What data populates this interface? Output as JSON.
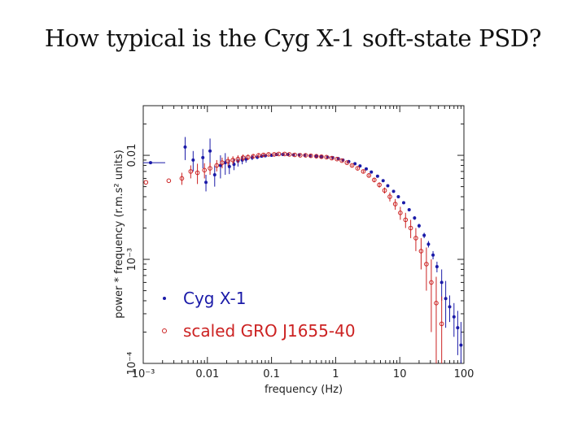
{
  "slide": {
    "title": "How typical is the Cyg X-1 soft-state PSD?"
  },
  "chart_data": {
    "type": "scatter",
    "title": "",
    "xlabel": "frequency (Hz)",
    "ylabel": "power * frequency (r.m.s² units)",
    "x_scale": "log",
    "y_scale": "log",
    "xlim": [
      0.001,
      100
    ],
    "ylim": [
      0.0001,
      0.03
    ],
    "x_ticks": [
      {
        "value": 0.001,
        "label": "10⁻³"
      },
      {
        "value": 0.01,
        "label": "0.01"
      },
      {
        "value": 0.1,
        "label": "0.1"
      },
      {
        "value": 1,
        "label": "1"
      },
      {
        "value": 10,
        "label": "10"
      },
      {
        "value": 100,
        "label": "100"
      }
    ],
    "y_ticks": [
      {
        "value": 0.0001,
        "label": "10⁻⁴"
      },
      {
        "value": 0.001,
        "label": "10⁻³"
      },
      {
        "value": 0.01,
        "label": "0.01"
      }
    ],
    "legend_position": "bottom-left",
    "series": [
      {
        "name": "Cyg X-1",
        "color": "#1a1aa8",
        "marker": "dot",
        "x": [
          0.0013,
          0.0045,
          0.006,
          0.0085,
          0.0095,
          0.011,
          0.013,
          0.016,
          0.019,
          0.022,
          0.026,
          0.03,
          0.035,
          0.04,
          0.05,
          0.06,
          0.07,
          0.08,
          0.1,
          0.12,
          0.15,
          0.18,
          0.22,
          0.27,
          0.33,
          0.4,
          0.5,
          0.6,
          0.75,
          0.9,
          1.1,
          1.3,
          1.6,
          2.0,
          2.4,
          3.0,
          3.6,
          4.5,
          5.5,
          6.5,
          8.0,
          9.5,
          11.5,
          14,
          17,
          20,
          24,
          28,
          33,
          38,
          45,
          52,
          60,
          70,
          80,
          90
        ],
        "y": [
          0.0085,
          0.012,
          0.009,
          0.0095,
          0.0055,
          0.011,
          0.0065,
          0.008,
          0.0085,
          0.0078,
          0.0082,
          0.0088,
          0.009,
          0.0092,
          0.0095,
          0.0096,
          0.0098,
          0.0099,
          0.01,
          0.0102,
          0.0102,
          0.0102,
          0.0101,
          0.0101,
          0.01,
          0.0099,
          0.0098,
          0.0097,
          0.0096,
          0.0095,
          0.0093,
          0.009,
          0.0087,
          0.0083,
          0.0079,
          0.0074,
          0.0069,
          0.0063,
          0.0057,
          0.0051,
          0.0045,
          0.004,
          0.0035,
          0.003,
          0.0025,
          0.0021,
          0.0017,
          0.0014,
          0.0011,
          0.00085,
          0.0006,
          0.00042,
          0.00035,
          0.00028,
          0.00022,
          0.00015
        ],
        "yerr": [
          0,
          0.003,
          0.002,
          0.002,
          0.001,
          0.0035,
          0.0015,
          0.002,
          0.002,
          0.0012,
          0.001,
          0.001,
          0.0008,
          0.0007,
          0.0005,
          0.0004,
          0.0003,
          0.0003,
          0.0002,
          0.0002,
          0.0002,
          0.0002,
          0.0002,
          0.00015,
          0.00015,
          0.00015,
          0.00015,
          0.00015,
          0.00012,
          0.00012,
          0.00012,
          0.00012,
          0.0001,
          0.0001,
          0.0001,
          0.0001,
          0.0001,
          0.0001,
          0.0001,
          0.0001,
          0.0001,
          0.0001,
          0.0001,
          0.0001,
          0.0001,
          0.0001,
          0.0001,
          0.0001,
          0.0001,
          0.0001,
          0.0002,
          0.0002,
          0.0001,
          0.0001,
          0.0001,
          0.0001
        ]
      },
      {
        "name": "scaled GRO J1655-40",
        "color": "#cc2222",
        "marker": "open-circle",
        "x": [
          0.0011,
          0.0025,
          0.004,
          0.0055,
          0.007,
          0.009,
          0.011,
          0.014,
          0.017,
          0.021,
          0.025,
          0.03,
          0.036,
          0.043,
          0.052,
          0.063,
          0.075,
          0.09,
          0.11,
          0.13,
          0.16,
          0.19,
          0.23,
          0.28,
          0.34,
          0.41,
          0.5,
          0.6,
          0.72,
          0.87,
          1.05,
          1.25,
          1.5,
          1.8,
          2.2,
          2.7,
          3.3,
          4.0,
          4.8,
          5.8,
          7.0,
          8.5,
          10.2,
          12.3,
          14.8,
          17.8,
          21.5,
          26,
          31,
          37,
          45
        ],
        "y": [
          0.0055,
          0.0057,
          0.006,
          0.007,
          0.0068,
          0.0072,
          0.0075,
          0.008,
          0.0085,
          0.0088,
          0.009,
          0.0092,
          0.0095,
          0.0096,
          0.0098,
          0.01,
          0.0101,
          0.0102,
          0.0102,
          0.0103,
          0.0103,
          0.0102,
          0.0101,
          0.01,
          0.01,
          0.0099,
          0.0098,
          0.0097,
          0.0096,
          0.0094,
          0.0092,
          0.0089,
          0.0085,
          0.008,
          0.0075,
          0.007,
          0.0064,
          0.0058,
          0.0052,
          0.0046,
          0.004,
          0.0034,
          0.0028,
          0.0024,
          0.002,
          0.0016,
          0.0012,
          0.0009,
          0.0006,
          0.00038,
          0.00024
        ],
        "yerr": [
          0,
          0,
          0.0008,
          0.001,
          0.0015,
          0.0012,
          0.001,
          0.001,
          0.001,
          0.0009,
          0.0008,
          0.0008,
          0.0007,
          0.0006,
          0.0005,
          0.0004,
          0.0003,
          0.0003,
          0.0003,
          0.0002,
          0.0002,
          0.0002,
          0.0002,
          0.0002,
          0.0002,
          0.0002,
          0.0002,
          0.0002,
          0.0002,
          0.0002,
          0.0002,
          0.0002,
          0.0002,
          0.0002,
          0.0002,
          0.0002,
          0.0002,
          0.0003,
          0.0003,
          0.0003,
          0.0004,
          0.0004,
          0.0004,
          0.0004,
          0.0004,
          0.0004,
          0.0004,
          0.0004,
          0.0004,
          0.0003,
          0.0002
        ]
      }
    ]
  }
}
